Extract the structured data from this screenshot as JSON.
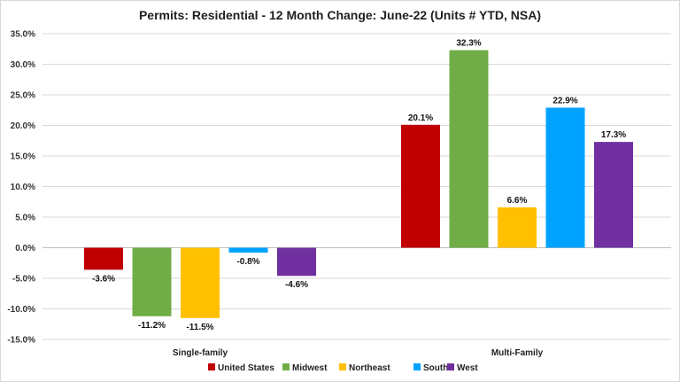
{
  "chart_data": {
    "type": "bar",
    "title": "Permits: Residential - 12 Month Change:  June-22 (Units # YTD, NSA)",
    "categories": [
      "Single-family",
      "Multi-Family"
    ],
    "series": [
      {
        "name": "United States",
        "color": "#c00000",
        "values": [
          -3.6,
          20.1
        ],
        "labels": [
          "-3.6%",
          "20.1%"
        ]
      },
      {
        "name": "Midwest",
        "color": "#70ad47",
        "values": [
          -11.2,
          32.3
        ],
        "labels": [
          "-11.2%",
          "32.3%"
        ]
      },
      {
        "name": "Northeast",
        "color": "#ffc000",
        "values": [
          -11.5,
          6.6
        ],
        "labels": [
          "-11.5%",
          "6.6%"
        ]
      },
      {
        "name": "South",
        "color": "#00a2ff",
        "values": [
          -0.8,
          22.9
        ],
        "labels": [
          "-0.8%",
          "22.9%"
        ]
      },
      {
        "name": "West",
        "color": "#7030a0",
        "values": [
          -4.6,
          17.3
        ],
        "labels": [
          "-4.6%",
          "17.3%"
        ]
      }
    ],
    "yTicks": [
      35,
      30,
      25,
      20,
      15,
      10,
      5,
      0,
      -5,
      -10,
      -15
    ],
    "yTickLabels": [
      "35.0%",
      "30.0%",
      "25.0%",
      "20.0%",
      "15.0%",
      "10.0%",
      "5.0%",
      "0.0%",
      "-5.0%",
      "-10.0%",
      "-15.0%"
    ],
    "ylim": [
      -15,
      35
    ],
    "xlabel": "",
    "ylabel": "",
    "grid": true,
    "legend_position": "bottom"
  }
}
